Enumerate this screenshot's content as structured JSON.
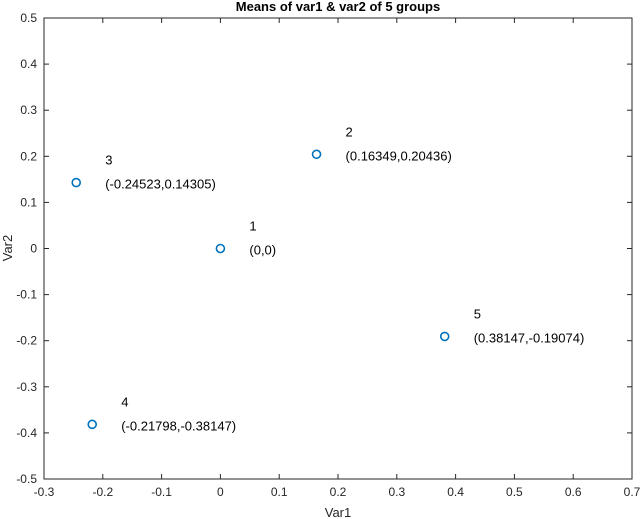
{
  "chart_data": {
    "type": "scatter",
    "title": "Means of var1 & var2 of 5 groups",
    "xlabel": "Var1",
    "ylabel": "Var2",
    "xlim": [
      -0.3,
      0.7
    ],
    "ylim": [
      -0.5,
      0.5
    ],
    "xticks": [
      -0.3,
      -0.2,
      -0.1,
      0,
      0.1,
      0.2,
      0.3,
      0.4,
      0.5,
      0.6,
      0.7
    ],
    "xtick_labels": [
      "-0.3",
      "-0.2",
      "-0.1",
      "0",
      "0.1",
      "0.2",
      "0.3",
      "0.4",
      "0.5",
      "0.6",
      "0.7"
    ],
    "yticks": [
      -0.5,
      -0.4,
      -0.3,
      -0.2,
      -0.1,
      0,
      0.1,
      0.2,
      0.3,
      0.4,
      0.5
    ],
    "ytick_labels": [
      "-0.5",
      "-0.4",
      "-0.3",
      "-0.2",
      "-0.1",
      "0",
      "0.1",
      "0.2",
      "0.3",
      "0.4",
      "0.5"
    ],
    "grid": false,
    "marker_color": "#0072BD",
    "points": [
      {
        "x": 0,
        "y": 0,
        "label": "1",
        "coord_label": "(0,0)"
      },
      {
        "x": 0.16349,
        "y": 0.20436,
        "label": "2",
        "coord_label": "(0.16349,0.20436)"
      },
      {
        "x": -0.24523,
        "y": 0.14305,
        "label": "3",
        "coord_label": "(-0.24523,0.14305)"
      },
      {
        "x": -0.21798,
        "y": -0.38147,
        "label": "4",
        "coord_label": "(-0.21798,-0.38147)"
      },
      {
        "x": 0.38147,
        "y": -0.19074,
        "label": "5",
        "coord_label": "(0.38147,-0.19074)"
      }
    ]
  }
}
